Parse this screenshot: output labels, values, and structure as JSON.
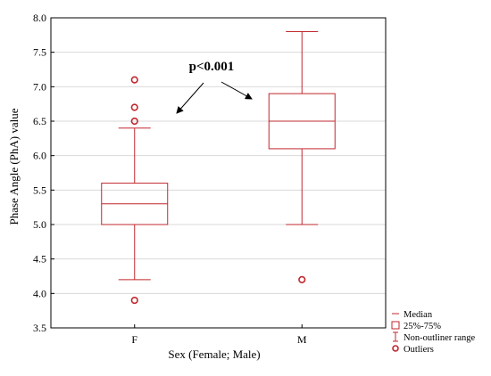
{
  "chart_data": {
    "type": "box",
    "xlabel": "Sex (Female; Male)",
    "ylabel": "Phase Angle (PhA) value",
    "ylim": [
      3.5,
      8.0
    ],
    "yticks": [
      "3.5",
      "4.0",
      "4.5",
      "5.0",
      "5.5",
      "6.0",
      "6.5",
      "7.0",
      "7.5",
      "8.0"
    ],
    "grid": true,
    "colors": {
      "box": "#c0272d",
      "grid": "#d9d9d9",
      "annotation": "#000000"
    },
    "annotation": "p<0.001",
    "groups": [
      {
        "label": "F",
        "whisker_low": 4.2,
        "q1": 5.0,
        "median": 5.3,
        "q3": 5.6,
        "whisker_high": 6.4,
        "outliers": [
          3.9,
          6.5,
          6.7,
          7.1
        ]
      },
      {
        "label": "M",
        "whisker_low": 5.0,
        "q1": 6.1,
        "median": 6.5,
        "q3": 6.9,
        "whisker_high": 7.8,
        "outliers": [
          4.2
        ]
      }
    ],
    "legend": {
      "position": "bottom-right",
      "items": [
        {
          "symbol": "median-line",
          "label": "Median"
        },
        {
          "symbol": "box",
          "label": "25%-75%"
        },
        {
          "symbol": "whisker",
          "label": "Non-outliner range"
        },
        {
          "symbol": "outlier-circle",
          "label": "Outliers"
        }
      ]
    }
  }
}
